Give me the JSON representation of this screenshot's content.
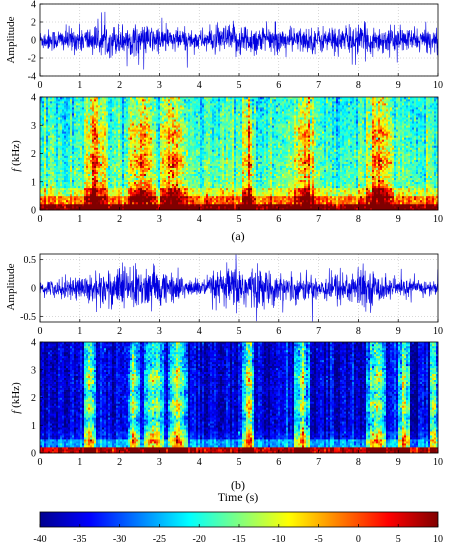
{
  "chart_data": [
    {
      "panel": "a-waveform",
      "type": "line",
      "ylabel": "Amplitude",
      "xlim": [
        0,
        10
      ],
      "ylim": [
        -4,
        4
      ],
      "yticks": [
        "4",
        "2",
        "0",
        "-2",
        "-4"
      ],
      "xticks": [
        "0",
        "1",
        "2",
        "3",
        "4",
        "5",
        "6",
        "7",
        "8",
        "9",
        "10"
      ],
      "grid": "dotted",
      "series_color": "#0000e0",
      "amplitude_envelope": {
        "t": [
          0,
          1,
          2,
          3,
          4,
          5,
          6,
          7,
          8,
          9,
          10
        ],
        "v": [
          1.0,
          1.3,
          1.6,
          1.4,
          1.0,
          1.7,
          1.2,
          1.3,
          1.5,
          1.2,
          1.1
        ]
      }
    },
    {
      "panel": "a-spectrogram",
      "type": "heatmap",
      "ylabel_italic": "f",
      "ylabel_unit": " (kHz)",
      "xlim": [
        0,
        10
      ],
      "ylim": [
        0,
        4
      ],
      "yticks": [
        "4",
        "3",
        "2",
        "1",
        "0"
      ],
      "xticks": [
        "0",
        "1",
        "2",
        "3",
        "4",
        "5",
        "6",
        "7",
        "8",
        "9",
        "10"
      ],
      "background_level_db": -17,
      "speech_segments_s": [
        [
          1.1,
          1.7
        ],
        [
          2.2,
          2.9
        ],
        [
          3.0,
          3.7
        ],
        [
          5.1,
          5.4
        ],
        [
          6.4,
          6.9
        ],
        [
          8.2,
          8.9
        ]
      ],
      "caption": "(a)"
    },
    {
      "panel": "b-waveform",
      "type": "line",
      "ylabel": "Amplitude",
      "xlim": [
        0,
        10
      ],
      "ylim": [
        -0.6,
        0.6
      ],
      "yticks": [
        "0.5",
        "0",
        "-0.5"
      ],
      "xticks": [
        "0",
        "1",
        "2",
        "3",
        "4",
        "5",
        "6",
        "7",
        "8",
        "9",
        "10"
      ],
      "grid": "dotted",
      "series_color": "#0000e0",
      "amplitude_envelope": {
        "t": [
          0,
          1,
          2,
          3,
          4,
          5,
          6,
          7,
          8,
          9,
          10
        ],
        "v": [
          0.1,
          0.2,
          0.35,
          0.3,
          0.12,
          0.4,
          0.22,
          0.2,
          0.32,
          0.14,
          0.12
        ]
      }
    },
    {
      "panel": "b-spectrogram",
      "type": "heatmap",
      "ylabel_italic": "f",
      "ylabel_unit": " (kHz)",
      "xlim": [
        0,
        10
      ],
      "ylim": [
        0,
        4
      ],
      "yticks": [
        "4",
        "3",
        "2",
        "1",
        "0"
      ],
      "xticks": [
        "0",
        "1",
        "2",
        "3",
        "4",
        "5",
        "6",
        "7",
        "8",
        "9",
        "10"
      ],
      "background_level_db": -36,
      "speech_segments_s": [
        [
          1.1,
          1.4
        ],
        [
          2.2,
          2.5
        ],
        [
          2.6,
          3.1
        ],
        [
          3.2,
          3.7
        ],
        [
          5.1,
          5.4
        ],
        [
          6.4,
          6.8
        ],
        [
          8.2,
          8.7
        ],
        [
          9.0,
          9.3
        ],
        [
          9.8,
          10.0
        ]
      ],
      "caption": "(b)"
    },
    {
      "panel": "colorbar",
      "type": "colorbar",
      "range_db": [
        -40,
        10
      ],
      "ticks": [
        "-40",
        "-35",
        "-30",
        "-25",
        "-20",
        "-15",
        "-10",
        "-5",
        "0",
        "5",
        "10"
      ],
      "colormap": "jet"
    }
  ],
  "xlabel": "Time (s)"
}
